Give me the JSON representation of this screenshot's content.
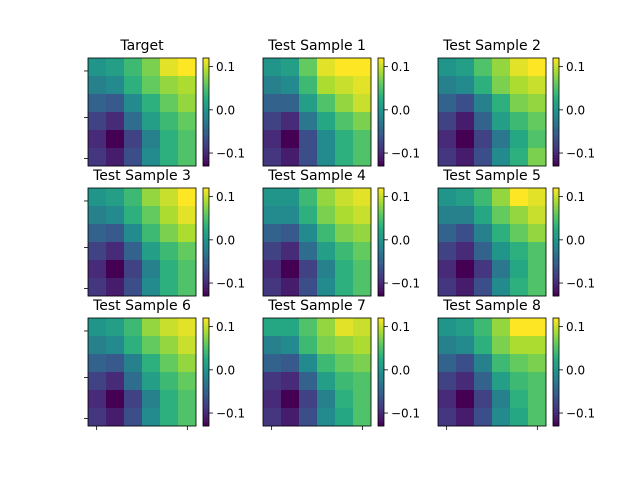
{
  "figure": {
    "background": "#ffffff",
    "colormap": "viridis",
    "colorbar_ticks": [
      "0.1",
      "0.0",
      "−0.1"
    ],
    "colorbar_tick_values": [
      0.1,
      0.0,
      -0.1
    ],
    "vmin": -0.13,
    "vmax": 0.12
  },
  "chart_data": [
    {
      "type": "heatmap",
      "title": "Target",
      "z": [
        [
          0.0,
          0.01,
          0.04,
          0.07,
          0.11,
          0.12
        ],
        [
          -0.02,
          -0.01,
          0.03,
          0.06,
          0.08,
          0.09
        ],
        [
          -0.05,
          -0.06,
          -0.01,
          0.03,
          0.06,
          0.08
        ],
        [
          -0.08,
          -0.1,
          -0.04,
          0.01,
          0.04,
          0.06
        ],
        [
          -0.1,
          -0.13,
          -0.08,
          -0.02,
          0.03,
          0.05
        ],
        [
          -0.09,
          -0.11,
          -0.07,
          -0.01,
          0.03,
          0.05
        ]
      ]
    },
    {
      "type": "heatmap",
      "title": "Test Sample 1",
      "z": [
        [
          0.0,
          0.01,
          0.06,
          0.11,
          0.12,
          0.12
        ],
        [
          -0.02,
          -0.01,
          0.04,
          0.09,
          0.1,
          0.11
        ],
        [
          -0.05,
          -0.05,
          0.01,
          0.05,
          0.08,
          0.1
        ],
        [
          -0.08,
          -0.1,
          -0.03,
          0.02,
          0.05,
          0.07
        ],
        [
          -0.1,
          -0.13,
          -0.07,
          -0.01,
          0.03,
          0.05
        ],
        [
          -0.09,
          -0.11,
          -0.07,
          -0.01,
          0.03,
          0.05
        ]
      ]
    },
    {
      "type": "heatmap",
      "title": "Test Sample 2",
      "z": [
        [
          0.0,
          0.01,
          0.05,
          0.08,
          0.11,
          0.12
        ],
        [
          -0.02,
          -0.01,
          0.03,
          0.07,
          0.09,
          0.1
        ],
        [
          -0.05,
          -0.07,
          -0.02,
          0.03,
          0.07,
          0.08
        ],
        [
          -0.08,
          -0.11,
          -0.05,
          0.01,
          0.04,
          0.06
        ],
        [
          -0.1,
          -0.13,
          -0.08,
          -0.03,
          0.02,
          0.05
        ],
        [
          -0.09,
          -0.11,
          -0.07,
          -0.01,
          0.03,
          0.07
        ]
      ]
    },
    {
      "type": "heatmap",
      "title": "Test Sample 3",
      "z": [
        [
          0.0,
          0.01,
          0.04,
          0.08,
          0.1,
          0.12
        ],
        [
          -0.02,
          -0.01,
          0.03,
          0.06,
          0.09,
          0.11
        ],
        [
          -0.05,
          -0.06,
          -0.01,
          0.04,
          0.07,
          0.09
        ],
        [
          -0.08,
          -0.1,
          -0.05,
          0.01,
          0.04,
          0.06
        ],
        [
          -0.1,
          -0.13,
          -0.08,
          -0.02,
          0.03,
          0.05
        ],
        [
          -0.09,
          -0.11,
          -0.07,
          -0.01,
          0.03,
          0.05
        ]
      ]
    },
    {
      "type": "heatmap",
      "title": "Test Sample 4",
      "z": [
        [
          0.0,
          0.0,
          0.04,
          0.08,
          0.1,
          0.11
        ],
        [
          -0.01,
          -0.01,
          0.03,
          0.07,
          0.09,
          0.1
        ],
        [
          -0.05,
          -0.06,
          -0.01,
          0.04,
          0.07,
          0.08
        ],
        [
          -0.08,
          -0.1,
          -0.04,
          0.01,
          0.04,
          0.06
        ],
        [
          -0.1,
          -0.13,
          -0.08,
          -0.02,
          0.03,
          0.05
        ],
        [
          -0.09,
          -0.11,
          -0.07,
          -0.01,
          0.03,
          0.05
        ]
      ]
    },
    {
      "type": "heatmap",
      "title": "Test Sample 5",
      "z": [
        [
          0.0,
          0.01,
          0.04,
          0.08,
          0.12,
          0.11
        ],
        [
          -0.02,
          -0.02,
          0.02,
          0.06,
          0.08,
          0.1
        ],
        [
          -0.05,
          -0.07,
          -0.02,
          0.03,
          0.06,
          0.08
        ],
        [
          -0.08,
          -0.1,
          -0.05,
          0.0,
          0.03,
          0.05
        ],
        [
          -0.1,
          -0.13,
          -0.09,
          -0.03,
          0.02,
          0.05
        ],
        [
          -0.09,
          -0.11,
          -0.07,
          -0.01,
          0.03,
          0.05
        ]
      ]
    },
    {
      "type": "heatmap",
      "title": "Test Sample 6",
      "z": [
        [
          0.0,
          0.01,
          0.04,
          0.08,
          0.1,
          0.11
        ],
        [
          -0.02,
          -0.01,
          0.03,
          0.06,
          0.08,
          0.1
        ],
        [
          -0.05,
          -0.06,
          -0.02,
          0.03,
          0.06,
          0.08
        ],
        [
          -0.08,
          -0.1,
          -0.04,
          0.01,
          0.04,
          0.06
        ],
        [
          -0.1,
          -0.13,
          -0.08,
          -0.02,
          0.03,
          0.05
        ],
        [
          -0.09,
          -0.11,
          -0.07,
          -0.01,
          0.03,
          0.05
        ]
      ]
    },
    {
      "type": "heatmap",
      "title": "Test Sample 7",
      "z": [
        [
          0.02,
          0.02,
          0.05,
          0.08,
          0.11,
          0.1
        ],
        [
          -0.02,
          -0.01,
          0.04,
          0.07,
          0.08,
          0.09
        ],
        [
          -0.05,
          -0.06,
          -0.01,
          0.04,
          0.06,
          0.07
        ],
        [
          -0.09,
          -0.1,
          -0.05,
          0.01,
          0.04,
          0.05
        ],
        [
          -0.1,
          -0.13,
          -0.08,
          -0.02,
          0.03,
          0.05
        ],
        [
          -0.09,
          -0.11,
          -0.07,
          -0.01,
          0.02,
          0.05
        ]
      ]
    },
    {
      "type": "heatmap",
      "title": "Test Sample 8",
      "z": [
        [
          0.0,
          0.01,
          0.04,
          0.08,
          0.12,
          0.12
        ],
        [
          -0.02,
          -0.01,
          0.03,
          0.07,
          0.09,
          0.09
        ],
        [
          -0.05,
          -0.07,
          -0.02,
          0.04,
          0.06,
          0.07
        ],
        [
          -0.08,
          -0.1,
          -0.05,
          0.01,
          0.04,
          0.05
        ],
        [
          -0.1,
          -0.13,
          -0.08,
          -0.02,
          0.03,
          0.05
        ],
        [
          -0.09,
          -0.11,
          -0.07,
          -0.01,
          0.02,
          0.05
        ]
      ]
    }
  ]
}
